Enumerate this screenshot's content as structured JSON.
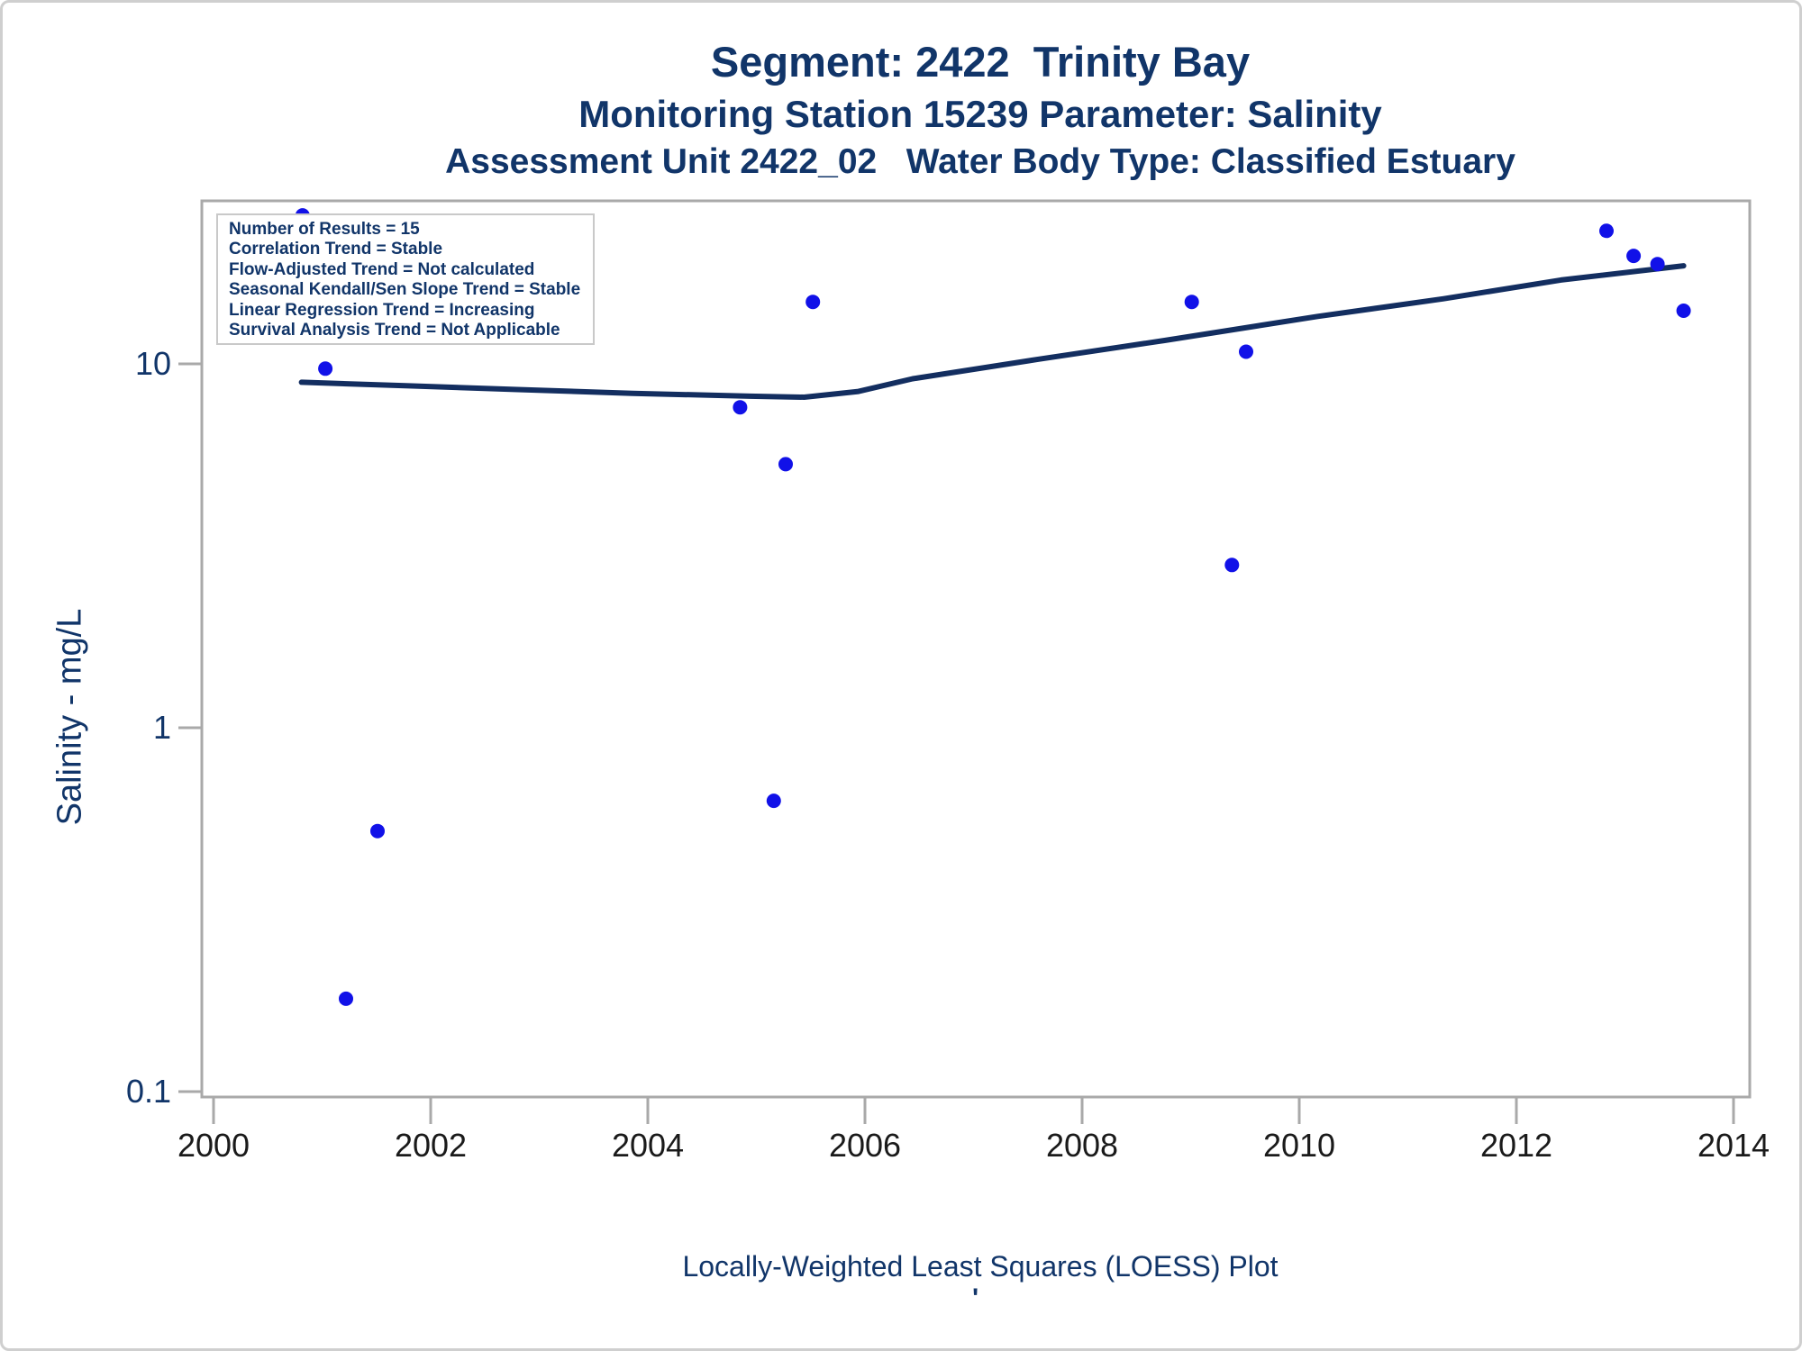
{
  "titles": {
    "line1": "Segment: 2422  Trinity Bay",
    "line2": "Monitoring Station 15239 Parameter: Salinity",
    "line3": "Assessment Unit 2422_02   Water Body Type: Classified Estuary"
  },
  "legend": {
    "lines": [
      "Number of Results = 15",
      "Correlation Trend = Stable",
      "Flow-Adjusted Trend = Not calculated",
      "Seasonal Kendall/Sen Slope Trend = Stable",
      "Linear Regression Trend = Increasing",
      "Survival Analysis Trend = Not Applicable"
    ]
  },
  "caption": "Locally-Weighted Least Squares (LOESS) Plot",
  "footnote_mark": "'",
  "colors": {
    "text_navy": "#113569",
    "loess_line": "#132e60",
    "dot_blue": "#1111e8",
    "axis_gray": "#a9a9a9",
    "x_tick_text": "#1a1a1a"
  },
  "chart_data": {
    "type": "scatter",
    "title": "Segment: 2422 Trinity Bay — Monitoring Station 15239 — Salinity",
    "xlabel": "",
    "ylabel": "Salinity - mg/L",
    "legend_position": "top-left",
    "grid": false,
    "x_axis": {
      "ticks": [
        2000,
        2002,
        2004,
        2006,
        2008,
        2010,
        2012,
        2014
      ],
      "range": [
        2000,
        2014.2
      ]
    },
    "y_axis": {
      "scale": "log",
      "ticks": [
        10,
        1,
        0.1
      ],
      "tick_labels": [
        "10",
        "1",
        "0.1"
      ],
      "range": [
        0.095,
        28
      ]
    },
    "points": [
      {
        "year": 2000.82,
        "value": 25.6
      },
      {
        "year": 2001.03,
        "value": 9.7
      },
      {
        "year": 2001.22,
        "value": 0.18
      },
      {
        "year": 2001.51,
        "value": 0.52
      },
      {
        "year": 2004.85,
        "value": 7.6
      },
      {
        "year": 2005.16,
        "value": 0.63
      },
      {
        "year": 2005.27,
        "value": 5.3
      },
      {
        "year": 2005.52,
        "value": 14.8
      },
      {
        "year": 2009.01,
        "value": 14.8
      },
      {
        "year": 2009.38,
        "value": 2.8
      },
      {
        "year": 2009.51,
        "value": 10.8
      },
      {
        "year": 2012.83,
        "value": 23.2
      },
      {
        "year": 2013.08,
        "value": 19.8
      },
      {
        "year": 2013.3,
        "value": 18.8
      },
      {
        "year": 2013.54,
        "value": 14.0
      }
    ],
    "loess": [
      [
        2000.81,
        8.9
      ],
      [
        2001.8,
        8.7
      ],
      [
        2002.8,
        8.5
      ],
      [
        2003.86,
        8.3
      ],
      [
        2004.94,
        8.15
      ],
      [
        2005.44,
        8.1
      ],
      [
        2005.94,
        8.4
      ],
      [
        2006.44,
        9.1
      ],
      [
        2007.6,
        10.3
      ],
      [
        2008.76,
        11.6
      ],
      [
        2010.17,
        13.5
      ],
      [
        2011.33,
        15.1
      ],
      [
        2012.41,
        17.0
      ],
      [
        2013.54,
        18.6
      ]
    ]
  }
}
